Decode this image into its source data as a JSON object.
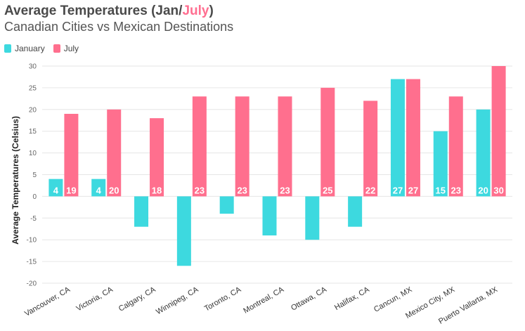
{
  "header": {
    "title_prefix": "Average Temperatures (Jan/",
    "title_highlight": "July",
    "title_suffix": ")",
    "subtitle": "Canadian Cities vs Mexican Destinations"
  },
  "colors": {
    "january": "#3dd9df",
    "july": "#ff6f8e",
    "grid": "#e6e6e6"
  },
  "chart_data": {
    "type": "bar",
    "title": "Average Temperatures (Jan/July)",
    "subtitle": "Canadian Cities vs Mexican Destinations",
    "xlabel": "",
    "ylabel": "Average Temperatures (Celsius)",
    "ylim": [
      -20,
      30
    ],
    "yticks": [
      -20,
      -15,
      -10,
      -5,
      0,
      5,
      10,
      15,
      20,
      25,
      30
    ],
    "grid": true,
    "legend_position": "top-left",
    "categories": [
      "Vancouver, CA",
      "Victoria, CA",
      "Calgary, CA",
      "Winnipeg, CA",
      "Toronto, CA",
      "Montreal, CA",
      "Ottawa, CA",
      "Halifax, CA",
      "Cancun, MX",
      "Mexico City, MX",
      "Puerto Vallarta, MX"
    ],
    "series": [
      {
        "name": "January",
        "values": [
          4,
          4,
          -7,
          -16,
          -4,
          -9,
          -10,
          -7,
          27,
          15,
          20
        ]
      },
      {
        "name": "July",
        "values": [
          19,
          20,
          18,
          23,
          23,
          23,
          25,
          22,
          27,
          23,
          30
        ]
      }
    ]
  }
}
